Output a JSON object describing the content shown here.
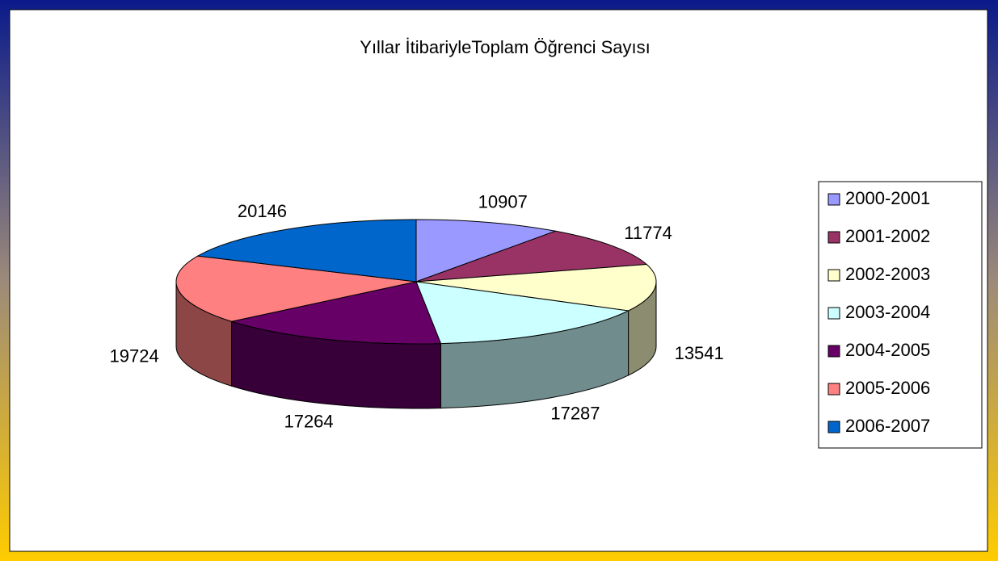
{
  "chart_data": {
    "type": "pie3d",
    "title": "Yıllar İtibariyleToplam Öğrenci Sayısı",
    "categories": [
      "2000-2001",
      "2001-2002",
      "2002-2003",
      "2003-2004",
      "2004-2005",
      "2005-2006",
      "2006-2007"
    ],
    "values": [
      10907,
      11774,
      13541,
      17287,
      17264,
      19724,
      20146
    ],
    "colors": [
      "#9999ff",
      "#993366",
      "#ffffcc",
      "#ccffff",
      "#660066",
      "#ff8080",
      "#0066cc"
    ],
    "legend": "right"
  }
}
